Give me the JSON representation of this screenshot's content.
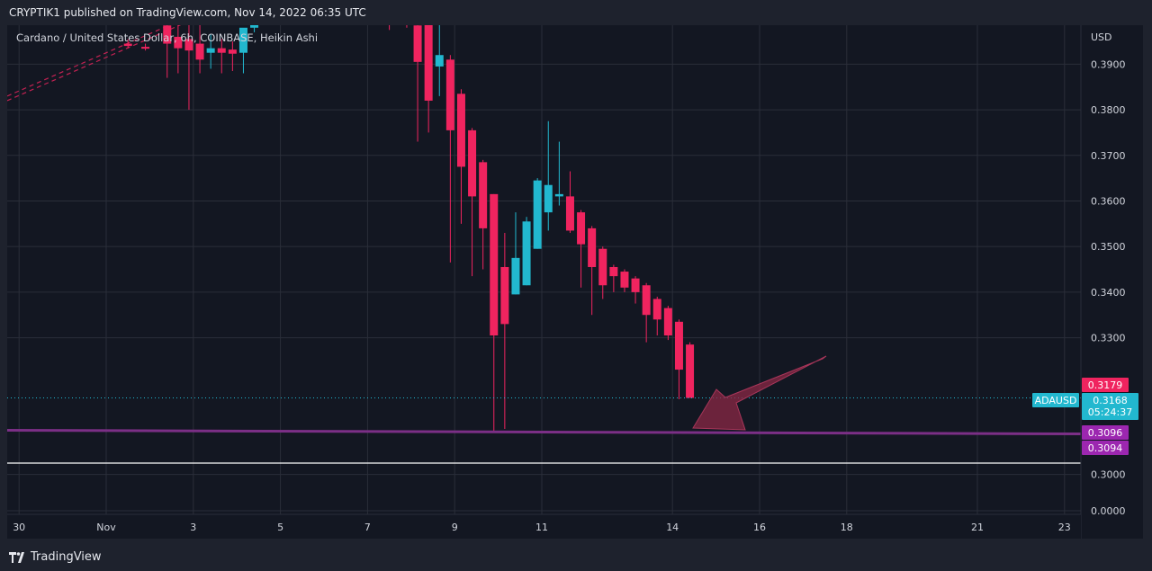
{
  "header": {
    "publish_line": "CRYPTIK1 published on TradingView.com, Nov 14, 2022 06:35 UTC"
  },
  "footer": {
    "brand": "TradingView"
  },
  "colors": {
    "bull": "#22b8cf",
    "bear": "#f0245f",
    "support": "#7b2f86",
    "arrow": "#8b2846",
    "grid": "#2a2e39",
    "bg": "#131722"
  },
  "chart_data": {
    "type": "candlestick",
    "title": "Cardano / United States Dollar, 6h, COINBASE, Heikin Ashi",
    "currency_label": "USD",
    "symbol_tag": "ADAUSD",
    "y_ticks": [
      "0.3900",
      "0.3800",
      "0.3700",
      "0.3600",
      "0.3500",
      "0.3400",
      "0.3300",
      "0.3000",
      "0.0000"
    ],
    "x_ticks": [
      "30",
      "Nov",
      "3",
      "5",
      "7",
      "9",
      "11",
      "14",
      "16",
      "18",
      "21",
      "23"
    ],
    "price_labels": {
      "high_tag": "0.3179",
      "current": "0.3168",
      "countdown": "05:24:37",
      "support_upper": "0.3096",
      "support_lower": "0.3094"
    },
    "horizontal_lines": {
      "support": 0.3095,
      "white_line": 0.3025
    },
    "candles": [
      {
        "t": 1.5,
        "o": 0.3945,
        "h": 0.3955,
        "l": 0.3935,
        "c": 0.394
      },
      {
        "t": 1.9,
        "o": 0.3938,
        "h": 0.3945,
        "l": 0.393,
        "c": 0.3934
      },
      {
        "t": 2.4,
        "o": 0.3985,
        "h": 0.399,
        "l": 0.387,
        "c": 0.3945
      },
      {
        "t": 2.65,
        "o": 0.396,
        "h": 0.399,
        "l": 0.388,
        "c": 0.3935
      },
      {
        "t": 2.9,
        "o": 0.3955,
        "h": 0.399,
        "l": 0.38,
        "c": 0.393
      },
      {
        "t": 3.15,
        "o": 0.3945,
        "h": 0.399,
        "l": 0.388,
        "c": 0.391
      },
      {
        "t": 3.4,
        "o": 0.3925,
        "h": 0.3965,
        "l": 0.389,
        "c": 0.3935
      },
      {
        "t": 3.65,
        "o": 0.3935,
        "h": 0.3955,
        "l": 0.388,
        "c": 0.3925
      },
      {
        "t": 3.9,
        "o": 0.3932,
        "h": 0.395,
        "l": 0.3885,
        "c": 0.3923
      },
      {
        "t": 4.15,
        "o": 0.3925,
        "h": 0.3975,
        "l": 0.388,
        "c": 0.398
      },
      {
        "t": 4.4,
        "o": 0.398,
        "h": 0.403,
        "l": 0.397,
        "c": 0.403
      },
      {
        "t": 7.5,
        "o": 0.402,
        "h": 0.403,
        "l": 0.3975,
        "c": 0.399
      },
      {
        "t": 7.9,
        "o": 0.403,
        "h": 0.404,
        "l": 0.398,
        "c": 0.4
      },
      {
        "t": 8.15,
        "o": 0.3985,
        "h": 0.4,
        "l": 0.373,
        "c": 0.3905
      },
      {
        "t": 8.4,
        "o": 0.4,
        "h": 0.401,
        "l": 0.375,
        "c": 0.382
      },
      {
        "t": 8.65,
        "o": 0.3895,
        "h": 0.4,
        "l": 0.383,
        "c": 0.392
      },
      {
        "t": 8.9,
        "o": 0.391,
        "h": 0.392,
        "l": 0.3465,
        "c": 0.3755
      },
      {
        "t": 9.15,
        "o": 0.3835,
        "h": 0.3845,
        "l": 0.355,
        "c": 0.3675
      },
      {
        "t": 9.4,
        "o": 0.3755,
        "h": 0.376,
        "l": 0.3435,
        "c": 0.361
      },
      {
        "t": 9.65,
        "o": 0.3685,
        "h": 0.369,
        "l": 0.345,
        "c": 0.354
      },
      {
        "t": 9.9,
        "o": 0.3615,
        "h": 0.3615,
        "l": 0.3095,
        "c": 0.3305
      },
      {
        "t": 10.15,
        "o": 0.3455,
        "h": 0.353,
        "l": 0.31,
        "c": 0.333
      },
      {
        "t": 10.4,
        "o": 0.3395,
        "h": 0.3575,
        "l": 0.3395,
        "c": 0.3475
      },
      {
        "t": 10.65,
        "o": 0.3415,
        "h": 0.3565,
        "l": 0.3415,
        "c": 0.3555
      },
      {
        "t": 10.9,
        "o": 0.3495,
        "h": 0.365,
        "l": 0.3495,
        "c": 0.3645
      },
      {
        "t": 11.15,
        "o": 0.3575,
        "h": 0.3775,
        "l": 0.3535,
        "c": 0.3635
      },
      {
        "t": 11.4,
        "o": 0.361,
        "h": 0.373,
        "l": 0.359,
        "c": 0.3615
      },
      {
        "t": 11.65,
        "o": 0.361,
        "h": 0.3665,
        "l": 0.353,
        "c": 0.3535
      },
      {
        "t": 11.9,
        "o": 0.3575,
        "h": 0.358,
        "l": 0.341,
        "c": 0.3505
      },
      {
        "t": 12.15,
        "o": 0.354,
        "h": 0.3545,
        "l": 0.335,
        "c": 0.3455
      },
      {
        "t": 12.4,
        "o": 0.3495,
        "h": 0.35,
        "l": 0.3385,
        "c": 0.3415
      },
      {
        "t": 12.65,
        "o": 0.3455,
        "h": 0.346,
        "l": 0.34,
        "c": 0.3435
      },
      {
        "t": 12.9,
        "o": 0.3445,
        "h": 0.345,
        "l": 0.34,
        "c": 0.341
      },
      {
        "t": 13.15,
        "o": 0.343,
        "h": 0.3435,
        "l": 0.3375,
        "c": 0.34
      },
      {
        "t": 13.4,
        "o": 0.3415,
        "h": 0.342,
        "l": 0.329,
        "c": 0.335
      },
      {
        "t": 13.65,
        "o": 0.3385,
        "h": 0.339,
        "l": 0.3305,
        "c": 0.334
      },
      {
        "t": 13.9,
        "o": 0.3365,
        "h": 0.337,
        "l": 0.3295,
        "c": 0.3305
      },
      {
        "t": 14.15,
        "o": 0.3335,
        "h": 0.334,
        "l": 0.3165,
        "c": 0.323
      },
      {
        "t": 14.4,
        "o": 0.3285,
        "h": 0.329,
        "l": 0.3175,
        "c": 0.3168
      }
    ],
    "trend_lines": [
      {
        "x1": 0.0,
        "y1": 0.382,
        "x2": 2.0,
        "y2": 0.401
      },
      {
        "x1": 0.0,
        "y1": 0.383,
        "x2": 2.0,
        "y2": 0.402
      }
    ]
  }
}
